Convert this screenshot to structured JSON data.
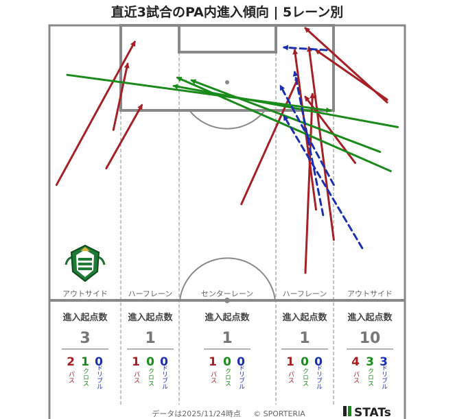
{
  "title": "直近3試合のPA内進入傾向 | 5レーン別",
  "footer": {
    "date_note": "データは2025/11/24時点",
    "copyright": "© SPORTERIA"
  },
  "brand": {
    "logo_text": "STATs"
  },
  "colors": {
    "pass": "#a52025",
    "cross": "#1a8a1a",
    "dribble": "#1a2fb0",
    "line": "#888888"
  },
  "legend_labels": {
    "pass": "パス",
    "cross": "クロス",
    "dribble": "ドリブル"
  },
  "chart_data": {
    "type": "scatter",
    "description_kind": "pitch arrows",
    "lanes": [
      {
        "name": "アウトサイド",
        "header": "進入起点数",
        "total": "3",
        "pass": "2",
        "cross": "1",
        "dribble": "0"
      },
      {
        "name": "ハーフレーン",
        "header": "進入起点数",
        "total": "1",
        "pass": "1",
        "cross": "0",
        "dribble": "0"
      },
      {
        "name": "センターレーン",
        "header": "進入起点数",
        "total": "1",
        "pass": "1",
        "cross": "0",
        "dribble": "0"
      },
      {
        "name": "ハーフレーン",
        "header": "進入起点数",
        "total": "1",
        "pass": "1",
        "cross": "0",
        "dribble": "0"
      },
      {
        "name": "アウトサイド",
        "header": "進入起点数",
        "total": "10",
        "pass": "4",
        "cross": "3",
        "dribble": "3"
      }
    ],
    "arrows": [
      {
        "kind": "pass",
        "x1": 0.02,
        "y1": 0.58,
        "x2": 0.24,
        "y2": 0.06
      },
      {
        "kind": "pass",
        "x1": 0.18,
        "y1": 0.38,
        "x2": 0.22,
        "y2": 0.14
      },
      {
        "kind": "pass",
        "x1": 0.16,
        "y1": 0.52,
        "x2": 0.26,
        "y2": 0.29
      },
      {
        "kind": "pass",
        "x1": 0.54,
        "y1": 0.65,
        "x2": 0.7,
        "y2": 0.19
      },
      {
        "kind": "pass",
        "x1": 0.8,
        "y1": 0.78,
        "x2": 0.73,
        "y2": 0.08
      },
      {
        "kind": "pass",
        "x1": 0.75,
        "y1": 0.67,
        "x2": 0.69,
        "y2": 0.09
      },
      {
        "kind": "pass",
        "x1": 0.86,
        "y1": 0.5,
        "x2": 0.72,
        "y2": 0.26
      },
      {
        "kind": "pass",
        "x1": 0.95,
        "y1": 0.28,
        "x2": 0.72,
        "y2": 0.01
      },
      {
        "kind": "pass",
        "x1": 0.95,
        "y1": 0.27,
        "x2": 0.75,
        "y2": 0.09
      },
      {
        "kind": "pass",
        "x1": 0.72,
        "y1": 0.9,
        "x2": 0.74,
        "y2": 0.25
      },
      {
        "kind": "cross",
        "x1": 0.05,
        "y1": 0.18,
        "x2": 0.79,
        "y2": 0.31
      },
      {
        "kind": "cross",
        "x1": 0.98,
        "y1": 0.37,
        "x2": 0.35,
        "y2": 0.22
      },
      {
        "kind": "cross",
        "x1": 0.96,
        "y1": 0.53,
        "x2": 0.36,
        "y2": 0.19
      },
      {
        "kind": "cross",
        "x1": 0.93,
        "y1": 0.46,
        "x2": 0.4,
        "y2": 0.2
      },
      {
        "kind": "dribble",
        "x1": 0.78,
        "y1": 0.09,
        "x2": 0.66,
        "y2": 0.08
      },
      {
        "kind": "dribble",
        "x1": 0.77,
        "y1": 0.69,
        "x2": 0.69,
        "y2": 0.17
      },
      {
        "kind": "dribble",
        "x1": 0.8,
        "y1": 0.58,
        "x2": 0.65,
        "y2": 0.22
      },
      {
        "kind": "dribble",
        "x1": 0.88,
        "y1": 0.81,
        "x2": 0.66,
        "y2": 0.33
      }
    ]
  }
}
